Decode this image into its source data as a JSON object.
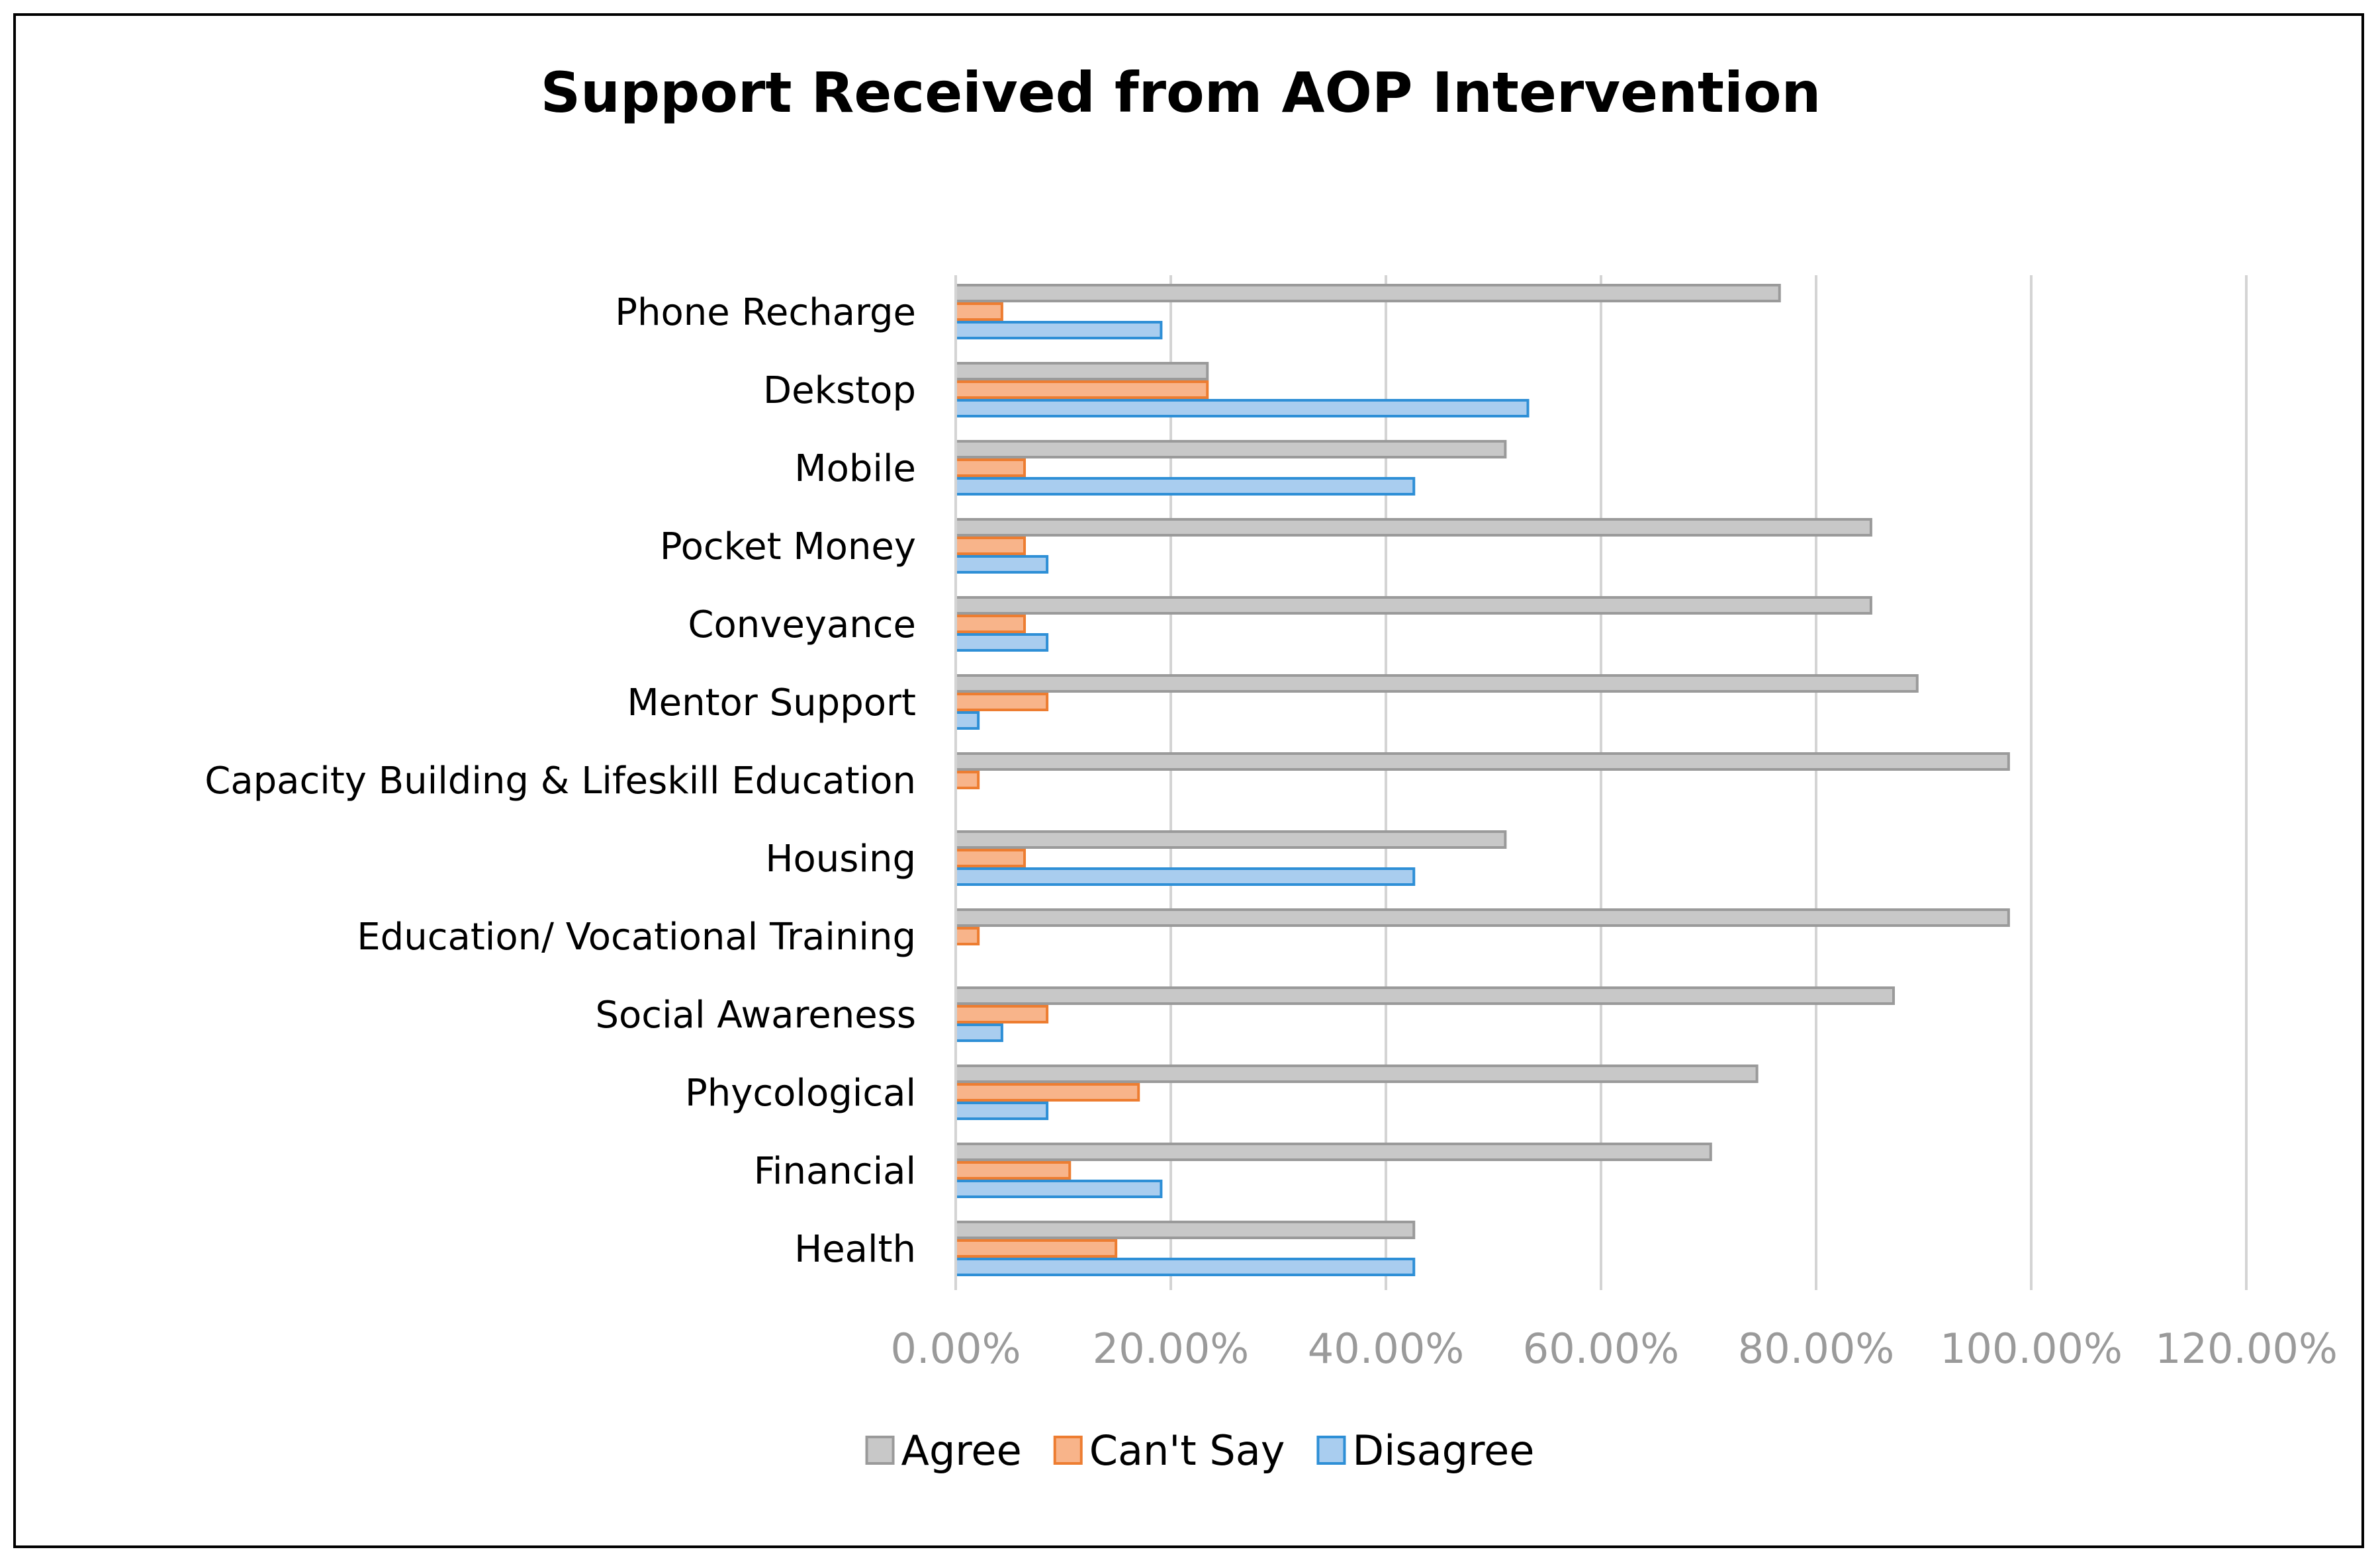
{
  "chart_data": {
    "type": "bar",
    "orientation": "horizontal",
    "title": "Support Received from AOP Intervention",
    "xlabel": "",
    "ylabel": "",
    "xlim": [
      0,
      120
    ],
    "x_ticks": [
      0,
      20,
      40,
      60,
      80,
      100,
      120
    ],
    "x_tick_labels": [
      "0.00%",
      "20.00%",
      "40.00%",
      "60.00%",
      "80.00%",
      "100.00%",
      "120.00%"
    ],
    "grid": true,
    "legend_position": "bottom",
    "categories": [
      "Phone Recharge",
      "Dekstop",
      "Mobile",
      "Pocket Money",
      "Conveyance",
      "Mentor Support",
      "Capacity Building & Lifeskill Education",
      "Housing",
      "Education/ Vocational Training",
      "Social Awareness",
      "Phycological",
      "Financial",
      "Health"
    ],
    "series": [
      {
        "name": "Agree",
        "color": "#c8c8c8",
        "stroke": "#9a9a9a",
        "values": [
          76.6,
          23.4,
          51.1,
          85.1,
          85.1,
          89.4,
          97.9,
          51.1,
          97.9,
          87.2,
          74.5,
          70.2,
          42.6
        ]
      },
      {
        "name": "Can't Say",
        "color": "#f8b48a",
        "stroke": "#ed7d31",
        "values": [
          4.3,
          23.4,
          6.4,
          6.4,
          6.4,
          8.5,
          2.1,
          6.4,
          2.1,
          8.5,
          17.0,
          10.6,
          14.9
        ]
      },
      {
        "name": "Disagree",
        "color": "#a9cdef",
        "stroke": "#2e8fd6",
        "values": [
          19.1,
          53.2,
          42.6,
          8.5,
          8.5,
          2.1,
          0.0,
          42.6,
          0.0,
          4.3,
          8.5,
          19.1,
          42.6
        ]
      }
    ]
  }
}
